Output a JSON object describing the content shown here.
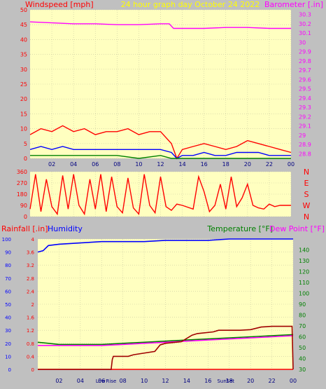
{
  "chart_data": [
    {
      "type": "line",
      "title": "24 hour graph day   October 24 2022",
      "ylabel_left": "Windspeed [mph]",
      "ylabel_right": "Barometer [.in]",
      "x_ticks": [
        "02",
        "04",
        "06",
        "08",
        "10",
        "12",
        "14",
        "16",
        "18",
        "20",
        "22",
        "00"
      ],
      "ylim_left": [
        0,
        50
      ],
      "yticks_left": [
        "0",
        "5",
        "10",
        "15",
        "20",
        "25",
        "30",
        "35",
        "40",
        "45",
        "50"
      ],
      "ylim_right": [
        28.75,
        30.35
      ],
      "yticks_right": [
        "28.8",
        "28.9",
        "29",
        "29.1",
        "29.2",
        "29.3",
        "29.4",
        "29.5",
        "29.6",
        "29.7",
        "29.8",
        "29.9",
        "30",
        "30.1",
        "30.2",
        "30.3"
      ],
      "grid": true,
      "colors": {
        "gust": "#ff0000",
        "avg": "#0000ff",
        "low": "#008000",
        "baro": "#ff00ff",
        "title": "#ffff00",
        "bg": "#ffffc0"
      },
      "series": [
        {
          "role": "barometer",
          "axis": "right",
          "x": [
            0,
            2,
            4,
            6,
            8,
            10,
            12,
            12.8,
            13.2,
            16,
            18,
            20,
            22,
            24
          ],
          "values": [
            30.22,
            30.21,
            30.2,
            30.2,
            30.19,
            30.19,
            30.2,
            30.2,
            30.15,
            30.15,
            30.16,
            30.16,
            30.15,
            30.15
          ]
        },
        {
          "role": "gust",
          "axis": "left",
          "x": [
            0,
            1,
            2,
            3,
            4,
            5,
            6,
            7,
            8,
            9,
            10,
            11,
            12,
            13,
            13.5,
            14,
            15,
            16,
            17,
            18,
            19,
            20,
            21,
            22,
            23,
            24
          ],
          "values": [
            8,
            10,
            9,
            11,
            9,
            10,
            8,
            9,
            9,
            10,
            8,
            9,
            9,
            5,
            0,
            3,
            4,
            5,
            4,
            3,
            4,
            6,
            5,
            4,
            3,
            2
          ]
        },
        {
          "role": "average",
          "axis": "left",
          "x": [
            0,
            1,
            2,
            3,
            4,
            5,
            6,
            7,
            8,
            9,
            10,
            11,
            12,
            13,
            13.5,
            14,
            15,
            16,
            17,
            18,
            19,
            20,
            21,
            22,
            23,
            24
          ],
          "values": [
            3,
            4,
            3,
            4,
            3,
            3,
            3,
            3,
            3,
            3,
            3,
            3,
            3,
            2,
            0,
            1,
            1,
            2,
            1,
            1,
            2,
            2,
            2,
            1,
            1,
            1
          ]
        },
        {
          "role": "low",
          "axis": "left",
          "x": [
            0,
            2,
            4,
            6,
            8,
            10,
            12,
            13,
            14,
            16,
            18,
            20,
            22,
            24
          ],
          "values": [
            1,
            1,
            1,
            1,
            1,
            0,
            1,
            0,
            0,
            0,
            0,
            0,
            0,
            0
          ]
        }
      ]
    },
    {
      "type": "line",
      "x_ticks": [
        "02",
        "04",
        "06",
        "08",
        "10",
        "12",
        "14",
        "16",
        "18",
        "20",
        "22",
        "00"
      ],
      "ylim": [
        0,
        360
      ],
      "yticks": [
        "0",
        "90",
        "180",
        "270",
        "360"
      ],
      "compass": [
        "N",
        "W",
        "S",
        "E",
        "N"
      ],
      "grid": true,
      "colors": {
        "dir": "#ff0000"
      },
      "series": [
        {
          "role": "wind-direction",
          "x": [
            0,
            0.5,
            1,
            1.5,
            2,
            2.5,
            3,
            3.5,
            4,
            4.5,
            5,
            5.5,
            6,
            6.5,
            7,
            7.5,
            8,
            8.5,
            9,
            9.5,
            10,
            10.5,
            11,
            11.5,
            12,
            12.5,
            13,
            13.5,
            14,
            15,
            15.5,
            16,
            16.5,
            17,
            17.5,
            18,
            18.5,
            19,
            19.5,
            20,
            20.5,
            21,
            21.5,
            22,
            22.5,
            23,
            24
          ],
          "values": [
            60,
            340,
            40,
            300,
            80,
            20,
            330,
            60,
            340,
            90,
            20,
            300,
            60,
            340,
            40,
            320,
            80,
            30,
            310,
            70,
            20,
            340,
            90,
            30,
            320,
            80,
            50,
            100,
            90,
            60,
            320,
            200,
            40,
            90,
            260,
            60,
            320,
            80,
            150,
            260,
            90,
            70,
            60,
            100,
            80,
            90,
            90
          ]
        }
      ]
    },
    {
      "type": "line",
      "ylabel_left_1": "Rainfall [.in]",
      "ylabel_left_2": "Humidity",
      "ylabel_right_1": "Temperature [°F]",
      "ylabel_right_2": "Dew Point [°F]",
      "x_ticks": [
        "02",
        "04",
        "06",
        "08",
        "10",
        "12",
        "14",
        "16",
        "18",
        "20",
        "22",
        "00"
      ],
      "x_annotations": [
        "Low",
        "Rise",
        "Set",
        "Sun"
      ],
      "ylim_rain": [
        0,
        4.0
      ],
      "yticks_rain": [
        "0",
        "0.4",
        "0.8",
        "1.2",
        "1.6",
        "2",
        "2.4",
        "2.8",
        "3.2",
        "3.6",
        "4"
      ],
      "ylim_hum": [
        0,
        100
      ],
      "yticks_hum": [
        "0",
        "10",
        "20",
        "30",
        "40",
        "50",
        "60",
        "70",
        "80",
        "90",
        "100"
      ],
      "ylim_temp": [
        30,
        150
      ],
      "yticks_temp": [
        "30",
        "40",
        "50",
        "60",
        "70",
        "80",
        "90",
        "100",
        "110",
        "120",
        "130",
        "140"
      ],
      "grid": true,
      "colors": {
        "rain": "#ff0000",
        "rain_total": "#a00000",
        "hum": "#0000ff",
        "temp": "#008000",
        "dew": "#ff00ff"
      },
      "series": [
        {
          "role": "humidity",
          "axis": "hum",
          "x": [
            0,
            0.5,
            1,
            2,
            4,
            6,
            8,
            10,
            12,
            14,
            16,
            18,
            20,
            22,
            24
          ],
          "values": [
            90,
            91,
            95,
            96,
            97,
            98,
            98,
            98,
            99,
            99,
            99,
            100,
            100,
            100,
            100
          ]
        },
        {
          "role": "temperature",
          "axis": "temp",
          "x": [
            0,
            1,
            2,
            4,
            6,
            8,
            10,
            12,
            14,
            16,
            18,
            20,
            22,
            24
          ],
          "values": [
            55,
            54,
            53,
            53,
            53,
            54,
            55,
            56,
            57,
            58,
            59,
            60,
            61,
            62
          ]
        },
        {
          "role": "dew-point",
          "axis": "temp",
          "x": [
            0,
            2,
            4,
            6,
            8,
            10,
            12,
            14,
            16,
            18,
            20,
            22,
            24
          ],
          "values": [
            52,
            52,
            52,
            52,
            53,
            54,
            55,
            56,
            57,
            58,
            59,
            60,
            61
          ]
        },
        {
          "role": "rain-rate",
          "axis": "rain",
          "x": [
            0,
            6.9,
            7.1,
            8.5,
            9.5,
            10.5,
            11,
            11.5,
            12,
            12.5,
            13,
            13.5,
            14,
            15,
            17,
            20,
            22,
            23.9,
            24
          ],
          "values": [
            0,
            0,
            0,
            0,
            0,
            0,
            0,
            0,
            0,
            0,
            0,
            0,
            0,
            0,
            0,
            0,
            0,
            0,
            0
          ]
        },
        {
          "role": "rain-total",
          "axis": "rain",
          "x": [
            0,
            6.9,
            7,
            7.1,
            8.5,
            9,
            11,
            11.5,
            12,
            13.5,
            14,
            14.5,
            15,
            16.5,
            17,
            19,
            20,
            21,
            22,
            23.9,
            24
          ],
          "values": [
            0,
            0,
            0.3,
            0.4,
            0.4,
            0.45,
            0.55,
            0.75,
            0.8,
            0.85,
            0.95,
            1.05,
            1.1,
            1.15,
            1.2,
            1.2,
            1.22,
            1.3,
            1.32,
            1.32,
            0
          ]
        }
      ]
    }
  ]
}
